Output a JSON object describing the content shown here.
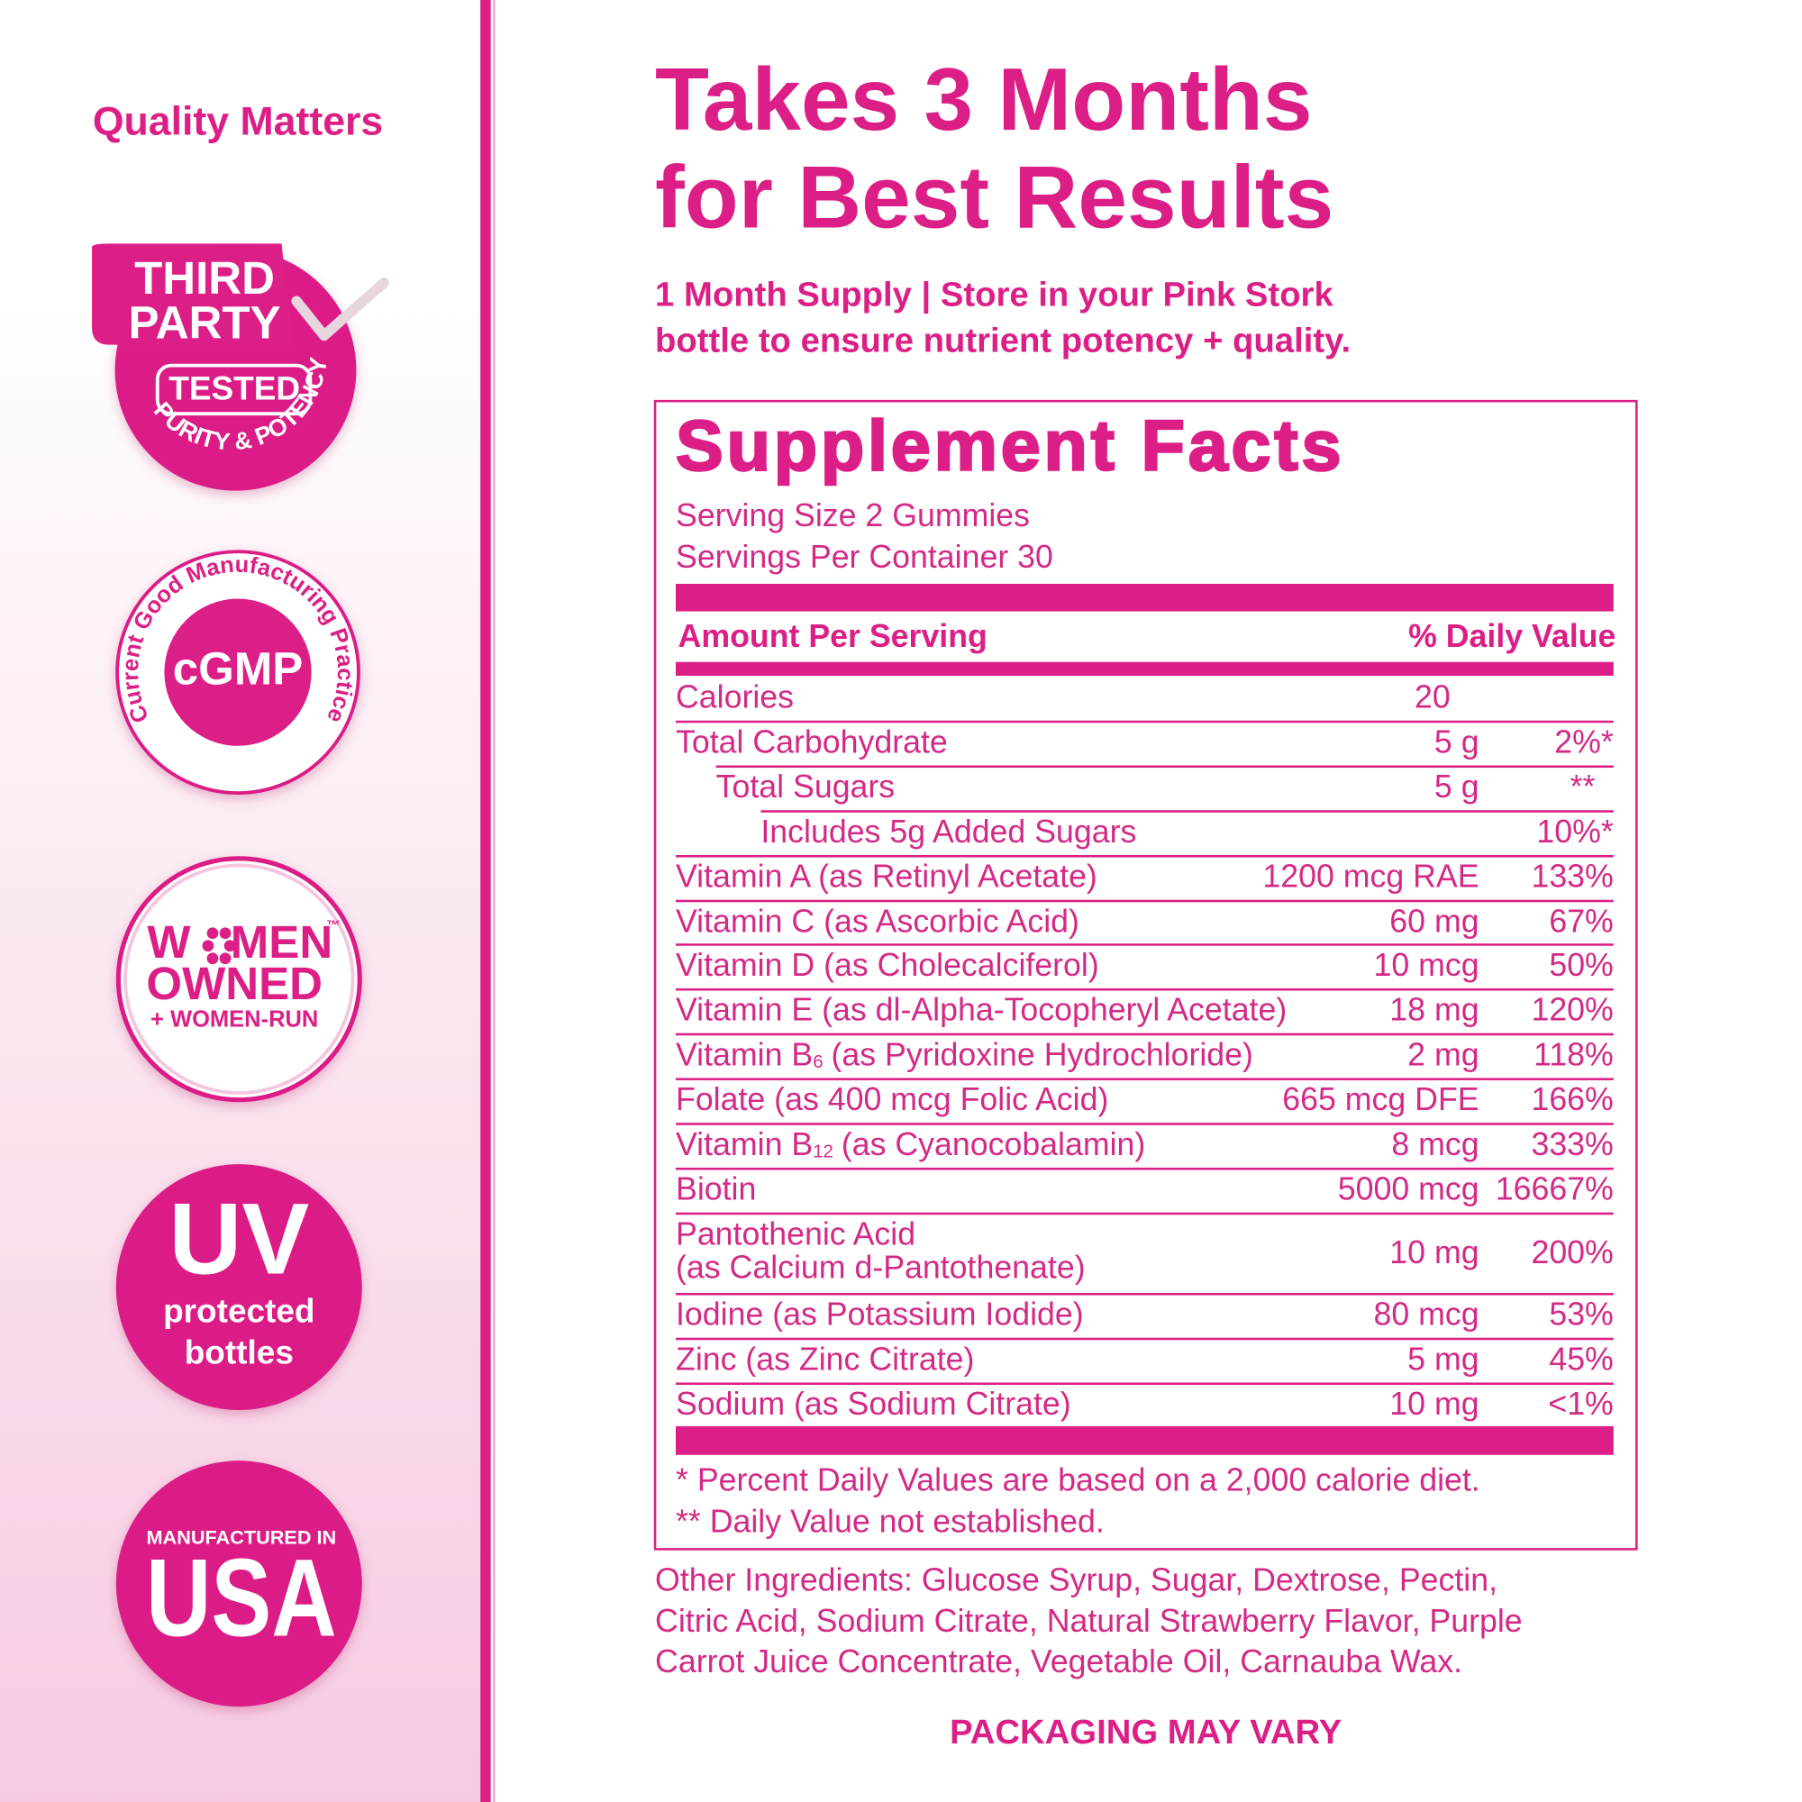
{
  "sidebar": {
    "title": "Quality Matters",
    "third_party": {
      "line1": "THIRD",
      "line2": "PARTY",
      "tested": "TESTED",
      "arc": "PURITY & POTENCY"
    },
    "cgmp": {
      "arc": "Current Good Manufacturing Practice",
      "label": "cGMP"
    },
    "women_owned": {
      "line1_start": "W",
      "line1_end": "MEN",
      "tm": "™",
      "line2": "OWNED",
      "line3": "+ WOMEN-RUN"
    },
    "uv": {
      "label": "UV",
      "line1": "protected",
      "line2": "bottles"
    },
    "usa": {
      "line1": "MANUFACTURED IN",
      "label": "USA"
    }
  },
  "header": {
    "title_lines": [
      "Takes 3 Months",
      "for Best Results"
    ],
    "subtitle_lines": [
      "1 Month Supply | Store in your Pink Stork",
      "bottle to ensure nutrient potency + quality."
    ]
  },
  "facts": {
    "title": "Supplement Facts",
    "serving_size": "Serving Size 2 Gummies",
    "servings_per_container": "Servings Per Container 30",
    "col_amount": "Amount Per Serving",
    "col_dv": "% Daily Value",
    "rows": [
      {
        "name": "Calories",
        "amount": "20"
      },
      {
        "name": "Total Carbohydrate",
        "amount": "5 g",
        "dv": "2%*"
      },
      {
        "name": "Total Sugars",
        "amount": "5 g",
        "dv": "**"
      },
      {
        "name": "Includes 5g Added Sugars",
        "dv": "10%*"
      },
      {
        "name": "Vitamin A (as Retinyl Acetate)",
        "amount": "1200 mcg RAE",
        "dv": "133%"
      },
      {
        "name": "Vitamin C (as Ascorbic Acid)",
        "amount": "60 mg",
        "dv": "67%"
      },
      {
        "name": "Vitamin D (as Cholecalciferol)",
        "amount": "10 mcg",
        "dv": "50%"
      },
      {
        "name": "Vitamin E (as dl-Alpha-Tocopheryl Acetate)",
        "amount": "18 mg",
        "dv": "120%"
      },
      {
        "name": "Vitamin B",
        "sub": "6",
        "detail": "(as Pyridoxine Hydrochloride)",
        "amount": "2 mg",
        "dv": "118%"
      },
      {
        "name": "Folate (as 400 mcg Folic Acid)",
        "amount": "665 mcg DFE",
        "dv": "166%"
      },
      {
        "name": "Vitamin B",
        "sub": "12",
        "detail": "(as Cyanocobalamin)",
        "amount": "8 mcg",
        "dv": "333%"
      },
      {
        "name": "Biotin",
        "amount": "5000 mcg",
        "dv": "16667%"
      },
      {
        "name": "Pantothenic Acid",
        "line2": "(as Calcium d-Pantothenate)",
        "amount": "10 mg",
        "dv": "200%"
      },
      {
        "name": "Iodine (as Potassium Iodide)",
        "amount": "80 mcg",
        "dv": "53%"
      },
      {
        "name": "Zinc (as Zinc Citrate)",
        "amount": "5 mg",
        "dv": "45%"
      },
      {
        "name": "Sodium (as Sodium Citrate)",
        "amount": "10 mg",
        "dv": "<1%"
      }
    ],
    "footnotes": [
      "* Percent Daily Values are based on a 2,000 calorie diet.",
      "** Daily Value not established."
    ]
  },
  "other_ingredients_lines": [
    "Other Ingredients: Glucose Syrup, Sugar, Dextrose, Pectin,",
    "Citric Acid, Sodium Citrate, Natural Strawberry Flavor, Purple",
    "Carrot Juice Concentrate, Vegetable Oil, Carnauba Wax."
  ],
  "packaging_note": "PACKAGING MAY VARY"
}
